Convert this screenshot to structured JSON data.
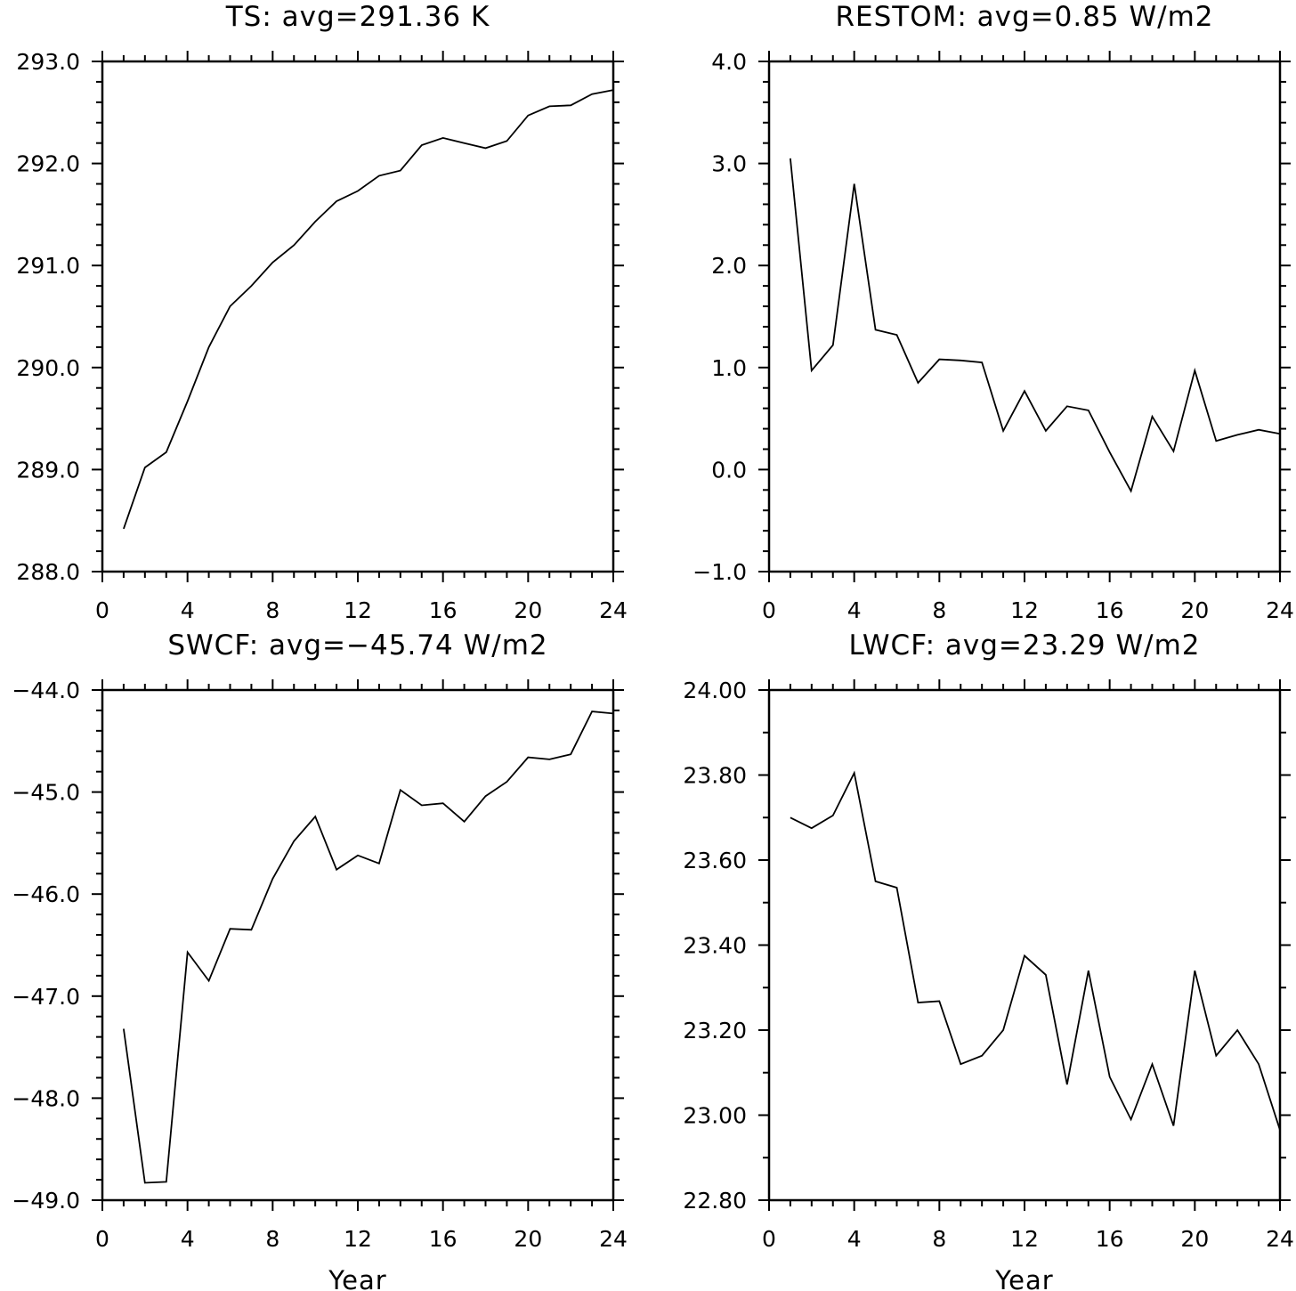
{
  "chart_data": [
    {
      "type": "line",
      "title": "TS: avg=291.36 K",
      "xlabel": "",
      "ylabel": "",
      "xlim": [
        0,
        24
      ],
      "ylim": [
        288.0,
        293.0
      ],
      "xticks": [
        "0",
        "4",
        "8",
        "12",
        "16",
        "20",
        "24"
      ],
      "yticks": [
        "288.0",
        "289.0",
        "290.0",
        "291.0",
        "292.0",
        "293.0"
      ],
      "grid": false,
      "x": [
        1,
        2,
        3,
        4,
        5,
        6,
        7,
        8,
        9,
        10,
        11,
        12,
        13,
        14,
        15,
        16,
        17,
        18,
        19,
        20,
        21,
        22,
        23,
        24
      ],
      "y": [
        288.42,
        289.02,
        289.17,
        289.67,
        290.2,
        290.6,
        290.8,
        291.03,
        291.2,
        291.43,
        291.63,
        291.73,
        291.88,
        291.93,
        292.18,
        292.25,
        292.2,
        292.15,
        292.22,
        292.47,
        292.56,
        292.57,
        292.68,
        292.72
      ]
    },
    {
      "type": "line",
      "title": "RESTOM: avg=0.85 W/m2",
      "xlabel": "",
      "ylabel": "",
      "xlim": [
        0,
        24
      ],
      "ylim": [
        -1.0,
        4.0
      ],
      "xticks": [
        "0",
        "4",
        "8",
        "12",
        "16",
        "20",
        "24"
      ],
      "yticks": [
        "−1.0",
        "0.0",
        "1.0",
        "2.0",
        "3.0",
        "4.0"
      ],
      "grid": false,
      "x": [
        1,
        2,
        3,
        4,
        5,
        6,
        7,
        8,
        9,
        10,
        11,
        12,
        13,
        14,
        15,
        16,
        17,
        18,
        19,
        20,
        21,
        22,
        23,
        24
      ],
      "y": [
        3.05,
        0.97,
        1.22,
        2.8,
        1.37,
        1.32,
        0.85,
        1.08,
        1.07,
        1.05,
        0.38,
        0.77,
        0.38,
        0.62,
        0.58,
        0.17,
        -0.21,
        0.52,
        0.18,
        0.97,
        0.28,
        0.34,
        0.39,
        0.35
      ]
    },
    {
      "type": "line",
      "title": "SWCF: avg=−45.74 W/m2",
      "xlabel": "Year",
      "ylabel": "",
      "xlim": [
        0,
        24
      ],
      "ylim": [
        -49.0,
        -44.0
      ],
      "xticks": [
        "0",
        "4",
        "8",
        "12",
        "16",
        "20",
        "24"
      ],
      "yticks": [
        "−49.0",
        "−48.0",
        "−47.0",
        "−46.0",
        "−45.0",
        "−44.0"
      ],
      "grid": false,
      "x": [
        1,
        2,
        3,
        4,
        5,
        6,
        7,
        8,
        9,
        10,
        11,
        12,
        13,
        14,
        15,
        16,
        17,
        18,
        19,
        20,
        21,
        22,
        23,
        24
      ],
      "y": [
        -47.32,
        -48.83,
        -48.82,
        -46.57,
        -46.85,
        -46.34,
        -46.35,
        -45.85,
        -45.48,
        -45.24,
        -45.76,
        -45.62,
        -45.7,
        -44.98,
        -45.13,
        -45.11,
        -45.29,
        -45.04,
        -44.9,
        -44.66,
        -44.68,
        -44.63,
        -44.21,
        -44.23
      ]
    },
    {
      "type": "line",
      "title": "LWCF: avg=23.29 W/m2",
      "xlabel": "Year",
      "ylabel": "",
      "xlim": [
        0,
        24
      ],
      "ylim": [
        22.8,
        24.0
      ],
      "xticks": [
        "0",
        "4",
        "8",
        "12",
        "16",
        "20",
        "24"
      ],
      "yticks": [
        "22.80",
        "23.00",
        "23.20",
        "23.40",
        "23.60",
        "23.80",
        "24.00"
      ],
      "grid": false,
      "x": [
        1,
        2,
        3,
        4,
        5,
        6,
        7,
        8,
        9,
        10,
        11,
        12,
        13,
        14,
        15,
        16,
        17,
        18,
        19,
        20,
        21,
        22,
        23,
        24
      ],
      "y": [
        23.7,
        23.675,
        23.705,
        23.805,
        23.55,
        23.535,
        23.265,
        23.268,
        23.12,
        23.14,
        23.2,
        23.375,
        23.33,
        23.072,
        23.34,
        23.09,
        22.99,
        23.12,
        22.975,
        23.34,
        23.14,
        23.2,
        23.12,
        22.965
      ]
    }
  ]
}
